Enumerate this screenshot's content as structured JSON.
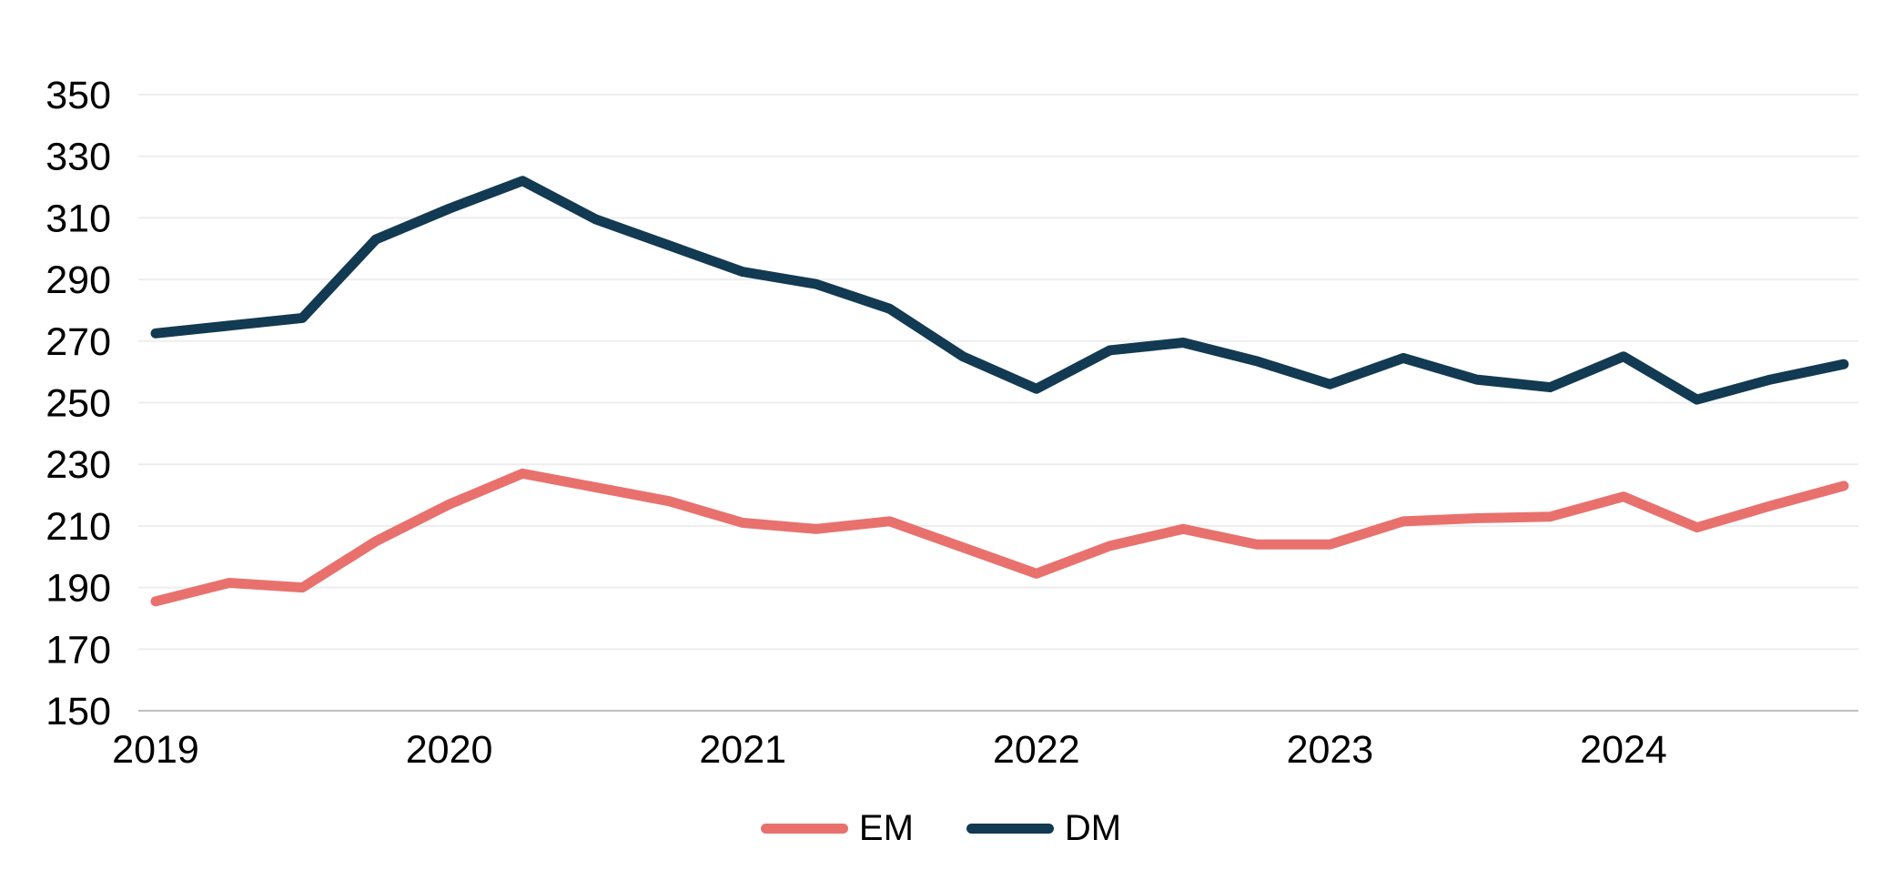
{
  "chart_data": {
    "type": "line",
    "x_unit": "quarterly",
    "categories": [
      "2019 Q1",
      "2019 Q2",
      "2019 Q3",
      "2019 Q4",
      "2020 Q1",
      "2020 Q2",
      "2020 Q3",
      "2020 Q4",
      "2021 Q1",
      "2021 Q2",
      "2021 Q3",
      "2021 Q4",
      "2022 Q1",
      "2022 Q2",
      "2022 Q3",
      "2022 Q4",
      "2023 Q1",
      "2023 Q2",
      "2023 Q3",
      "2023 Q4",
      "2024 Q1",
      "2024 Q2",
      "2024 Q3",
      "2024 Q4"
    ],
    "x_tick_labels": [
      "2019",
      "2020",
      "2021",
      "2022",
      "2023",
      "2024"
    ],
    "y_ticks": [
      150,
      170,
      190,
      210,
      230,
      250,
      270,
      290,
      310,
      330,
      350
    ],
    "ylim": [
      150,
      350
    ],
    "grid": "horizontal",
    "legend_position": "bottom-center",
    "series": [
      {
        "name": "EM",
        "color": "#E8716D",
        "values": [
          185.5,
          191.5,
          190,
          205,
          217,
          227,
          222.5,
          218,
          211,
          209,
          211.5,
          203,
          194.5,
          203.5,
          209,
          204,
          204,
          211.5,
          212.5,
          213,
          219.5,
          209.5,
          216.5,
          223
        ]
      },
      {
        "name": "DM",
        "color": "#123A52",
        "values": [
          272.5,
          275,
          277.5,
          303,
          313,
          322,
          309.5,
          301,
          292.5,
          288.5,
          280.5,
          265,
          254.5,
          267,
          269.5,
          263.5,
          256,
          264.5,
          257.5,
          255,
          265,
          251,
          257.5,
          262.5
        ]
      }
    ],
    "colors": {
      "gridline": "#EDEDED",
      "axis_line": "#C0C0C0",
      "tick_text": "#000000"
    }
  },
  "legend": {
    "items": [
      {
        "label": "EM"
      },
      {
        "label": "DM"
      }
    ]
  }
}
